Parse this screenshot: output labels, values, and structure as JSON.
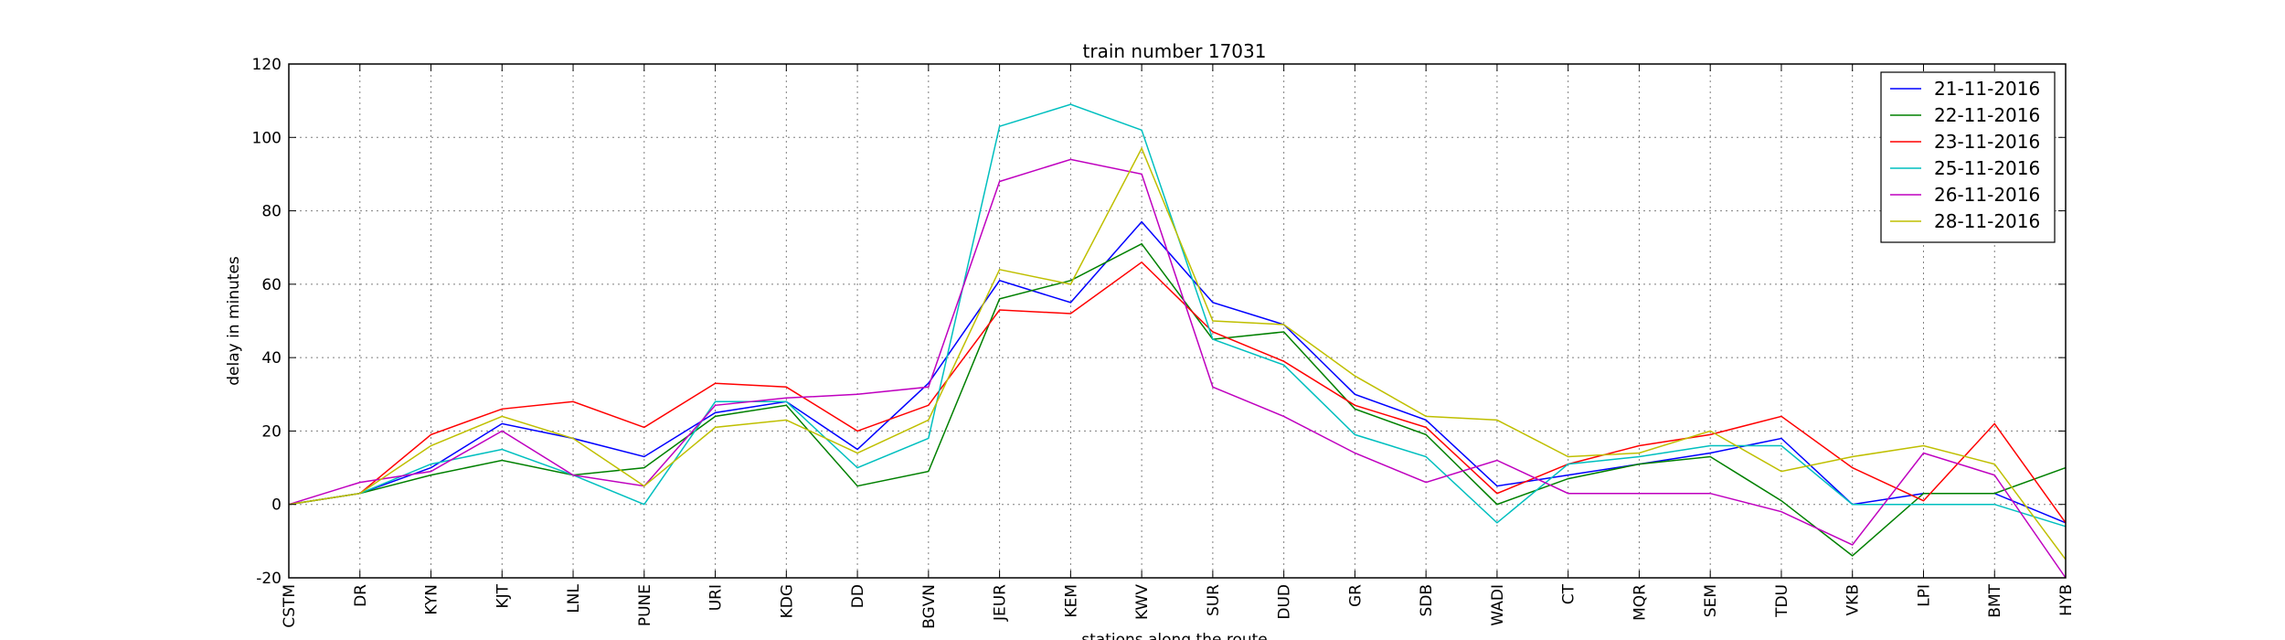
{
  "chart_data": {
    "type": "line",
    "title": "train number 17031",
    "xlabel": "stations along the route",
    "ylabel": "delay in minutes",
    "ylim": [
      -20,
      120
    ],
    "yticks": [
      -20,
      0,
      20,
      40,
      60,
      80,
      100,
      120
    ],
    "grid": true,
    "legend_position": "top-right",
    "categories": [
      "CSTM",
      "DR",
      "KYN",
      "KJT",
      "LNL",
      "PUNE",
      "URI",
      "KDG",
      "DD",
      "BGVN",
      "JEUR",
      "KEM",
      "KWV",
      "SUR",
      "DUD",
      "GR",
      "SDB",
      "WADI",
      "CT",
      "MQR",
      "SEM",
      "TDU",
      "VKB",
      "LPI",
      "BMT",
      "HYB"
    ],
    "series": [
      {
        "name": "21-11-2016",
        "color": "#0000ff",
        "values": [
          0,
          3,
          10,
          22,
          18,
          13,
          25,
          28,
          15,
          33,
          61,
          55,
          77,
          55,
          49,
          30,
          23,
          5,
          8,
          11,
          14,
          18,
          0,
          3,
          3,
          -5
        ]
      },
      {
        "name": "22-11-2016",
        "color": "#008000",
        "values": [
          0,
          3,
          8,
          12,
          8,
          10,
          24,
          27,
          5,
          9,
          56,
          61,
          71,
          45,
          47,
          26,
          19,
          0,
          7,
          11,
          13,
          1,
          -14,
          3,
          3,
          10
        ]
      },
      {
        "name": "23-11-2016",
        "color": "#ff0000",
        "values": [
          0,
          3,
          19,
          26,
          28,
          21,
          33,
          32,
          20,
          27,
          53,
          52,
          66,
          47,
          39,
          27,
          21,
          3,
          11,
          16,
          19,
          24,
          10,
          1,
          22,
          -5
        ]
      },
      {
        "name": "25-11-2016",
        "color": "#00bfbf",
        "values": [
          0,
          3,
          11,
          15,
          8,
          0,
          28,
          28,
          10,
          18,
          103,
          109,
          102,
          45,
          38,
          19,
          13,
          -5,
          11,
          13,
          16,
          16,
          0,
          0,
          0,
          -6
        ]
      },
      {
        "name": "26-11-2016",
        "color": "#bf00bf",
        "values": [
          0,
          6,
          9,
          20,
          8,
          5,
          27,
          29,
          30,
          32,
          88,
          94,
          90,
          32,
          24,
          14,
          6,
          12,
          3,
          3,
          3,
          -2,
          -11,
          14,
          8,
          -20
        ]
      },
      {
        "name": "28-11-2016",
        "color": "#bfbf00",
        "values": [
          0,
          3,
          16,
          24,
          18,
          5,
          21,
          23,
          14,
          23,
          64,
          60,
          97,
          50,
          49,
          35,
          24,
          23,
          13,
          14,
          20,
          9,
          13,
          16,
          11,
          -15
        ]
      }
    ]
  }
}
